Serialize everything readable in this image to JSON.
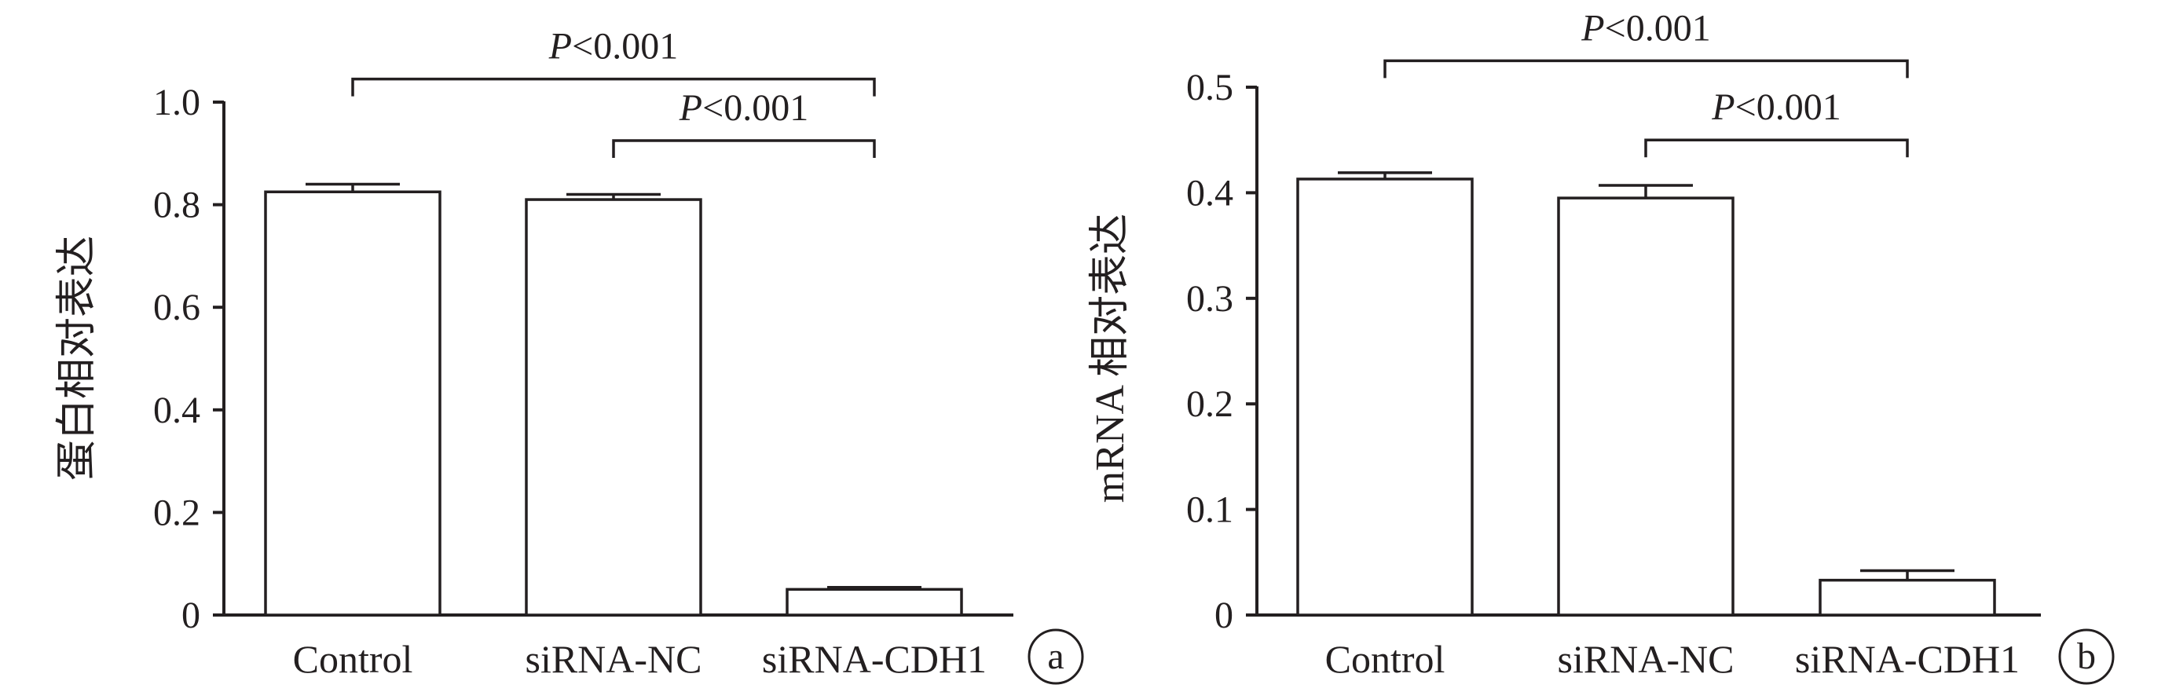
{
  "chart_data": [
    {
      "type": "bar",
      "panel_label": "a",
      "categories": [
        "Control",
        "siRNA-NC",
        "siRNA-CDH1"
      ],
      "values": [
        0.825,
        0.81,
        0.05
      ],
      "errors": [
        0.015,
        0.01,
        0.004
      ],
      "ylabel": "蛋白相对表达",
      "xlabel": "",
      "ylim": [
        0,
        1.0
      ],
      "yticks": [
        0,
        0.2,
        0.4,
        0.6,
        0.8,
        1.0
      ],
      "ytick_labels": [
        "0",
        "0.2",
        "0.4",
        "0.6",
        "0.8",
        "1.0"
      ],
      "significance": [
        {
          "from": 0,
          "to": 2,
          "p_italic": "P",
          "text": "<0.001",
          "level": 1.045
        },
        {
          "from": 1,
          "to": 2,
          "p_italic": "P",
          "text": "<0.001",
          "level": 0.925
        }
      ]
    },
    {
      "type": "bar",
      "panel_label": "b",
      "categories": [
        "Control",
        "siRNA-NC",
        "siRNA-CDH1"
      ],
      "values": [
        0.413,
        0.395,
        0.033
      ],
      "errors": [
        0.006,
        0.012,
        0.009
      ],
      "ylabel": "mRNA 相对表达",
      "xlabel": "",
      "ylim": [
        0,
        0.5
      ],
      "yticks": [
        0,
        0.1,
        0.2,
        0.3,
        0.4,
        0.5
      ],
      "ytick_labels": [
        "0",
        "0.1",
        "0.2",
        "0.3",
        "0.4",
        "0.5"
      ],
      "significance": [
        {
          "from": 0,
          "to": 2,
          "p_italic": "P",
          "text": "<0.001",
          "level": 0.525
        },
        {
          "from": 1,
          "to": 2,
          "p_italic": "P",
          "text": "<0.001",
          "level": 0.45
        }
      ]
    }
  ]
}
